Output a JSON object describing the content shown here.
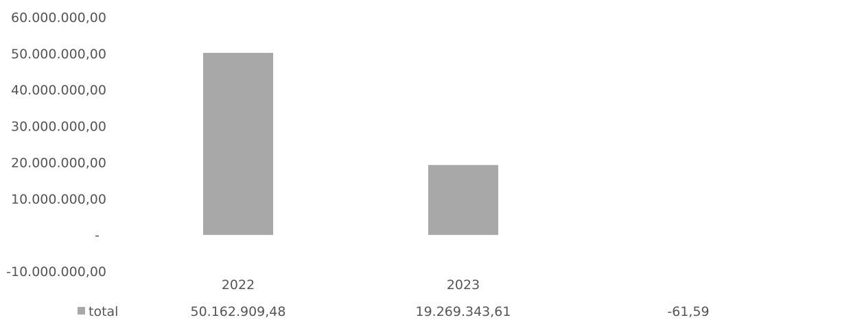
{
  "chart_data": {
    "type": "bar",
    "title": "",
    "xlabel": "",
    "ylabel": "",
    "categories": [
      "2022",
      "2023",
      ""
    ],
    "series": [
      {
        "name": "total",
        "values": [
          50162909.48,
          19269343.61,
          -61.59
        ],
        "value_labels": [
          "50.162.909,48",
          "19.269.343,61",
          "-61,59"
        ]
      }
    ],
    "ylim": [
      -10000000,
      60000000
    ],
    "yticks": [
      60000000,
      50000000,
      40000000,
      30000000,
      20000000,
      10000000,
      0,
      -10000000
    ],
    "ytick_labels": [
      "60.000.000,00",
      "50.000.000,00",
      "40.000.000,00",
      "30.000.000,00",
      "20.000.000,00",
      "10.000.000,00",
      "-",
      "-10.000.000,00"
    ],
    "grid": false,
    "legend": "bottom-left data table",
    "bar_color": "#a8a8a8",
    "text_color": "#555555"
  }
}
